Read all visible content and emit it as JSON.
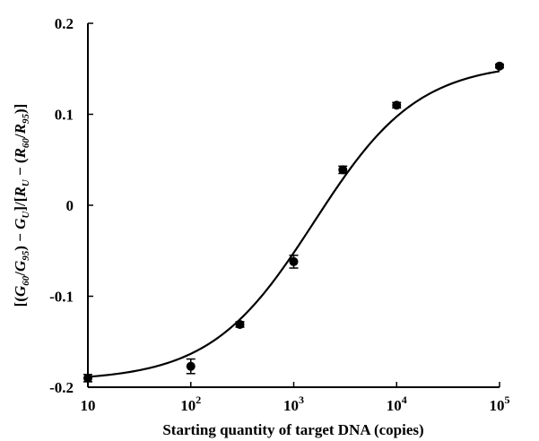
{
  "chart_data": {
    "type": "scatter",
    "xlabel": "Starting quantity of target DNA (copies)",
    "ylabel": "[(G60/G95) − GU]/[RU − (R60/R95)]",
    "x_scale": "log",
    "xlim": [
      10,
      100000
    ],
    "ylim": [
      -0.2,
      0.2
    ],
    "x_ticks": [
      {
        "value": 10,
        "base": "10",
        "exp": ""
      },
      {
        "value": 100,
        "base": "10",
        "exp": "2"
      },
      {
        "value": 1000,
        "base": "10",
        "exp": "3"
      },
      {
        "value": 10000,
        "base": "10",
        "exp": "4"
      },
      {
        "value": 100000,
        "base": "10",
        "exp": "5"
      }
    ],
    "y_ticks": [
      {
        "value": -0.2,
        "label": "-0.2"
      },
      {
        "value": -0.1,
        "label": "-0.1"
      },
      {
        "value": 0,
        "label": "0"
      },
      {
        "value": 0.1,
        "label": "0.1"
      },
      {
        "value": 0.2,
        "label": "0.2"
      }
    ],
    "points": [
      {
        "x": 10,
        "y": -0.19,
        "err": 0.004
      },
      {
        "x": 100,
        "y": -0.177,
        "err": 0.008
      },
      {
        "x": 300,
        "y": -0.131,
        "err": 0.003
      },
      {
        "x": 1000,
        "y": -0.062,
        "err": 0.007
      },
      {
        "x": 3000,
        "y": 0.039,
        "err": 0.004
      },
      {
        "x": 10000,
        "y": 0.11,
        "err": 0.003
      },
      {
        "x": 100000,
        "y": 0.153,
        "err": 0.002
      }
    ],
    "fit_curve": {
      "bottom": -0.193,
      "top": 0.157,
      "log_x50": 3.2,
      "hill": 0.86
    }
  }
}
